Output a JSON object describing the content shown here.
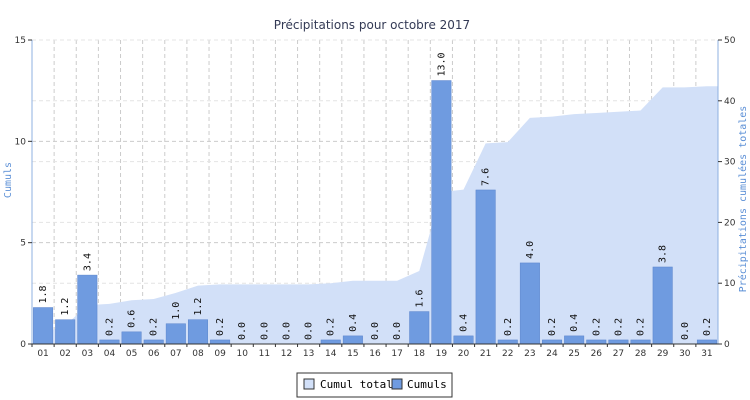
{
  "chart_data": {
    "type": "bar",
    "title": "Précipitations pour octobre 2017",
    "ylabel": "Cumuls",
    "y2label": "Précipitations cumulées totales",
    "xlabel": "",
    "ylim": [
      0,
      15
    ],
    "y2lim": [
      0,
      50
    ],
    "yticks": [
      "0",
      "5",
      "10",
      "15"
    ],
    "y2ticks": [
      "0",
      "10",
      "20",
      "30",
      "40",
      "50"
    ],
    "grid": true,
    "legend_position": "bottom",
    "categories": [
      "01",
      "02",
      "03",
      "04",
      "05",
      "06",
      "07",
      "08",
      "09",
      "10",
      "11",
      "12",
      "13",
      "14",
      "15",
      "16",
      "17",
      "18",
      "19",
      "20",
      "21",
      "22",
      "23",
      "24",
      "25",
      "26",
      "27",
      "28",
      "29",
      "30",
      "31"
    ],
    "series": [
      {
        "name": "Cumuls",
        "type": "bar",
        "axis": "left",
        "color": "#6f9be0",
        "values": [
          1.8,
          1.2,
          3.4,
          0.2,
          0.6,
          0.2,
          1.0,
          1.2,
          0.2,
          0.0,
          0.0,
          0.0,
          0.0,
          0.2,
          0.4,
          0.0,
          0.0,
          1.6,
          13.0,
          0.4,
          7.6,
          0.2,
          4.0,
          0.2,
          0.4,
          0.2,
          0.2,
          0.2,
          3.8,
          0.0,
          0.2
        ],
        "labels": [
          "1.8",
          "1.2",
          "3.4",
          "0.2",
          "0.6",
          "0.2",
          "1.0",
          "1.2",
          "0.2",
          "0.0",
          "0.0",
          "0.0",
          "0.0",
          "0.2",
          "0.4",
          "0.0",
          "0.0",
          "1.6",
          "13.0",
          "0.4",
          "7.6",
          "0.2",
          "4.0",
          "0.2",
          "0.4",
          "0.2",
          "0.2",
          "0.2",
          "3.8",
          "0.0",
          "0.2"
        ]
      },
      {
        "name": "Cumul total",
        "type": "area",
        "axis": "right",
        "color": "#d2e0f8",
        "values": [
          1.8,
          3.0,
          6.4,
          6.6,
          7.2,
          7.4,
          8.4,
          9.6,
          9.8,
          9.8,
          9.8,
          9.8,
          9.8,
          10.0,
          10.4,
          10.4,
          10.4,
          12.0,
          25.0,
          25.4,
          33.0,
          33.2,
          37.2,
          37.4,
          37.8,
          38.0,
          38.2,
          38.4,
          42.2,
          42.2,
          42.4
        ]
      }
    ]
  },
  "legend": {
    "items": [
      {
        "label": "Cumul total",
        "color": "#d2e0f8"
      },
      {
        "label": "Cumuls",
        "color": "#6f9be0"
      }
    ]
  }
}
